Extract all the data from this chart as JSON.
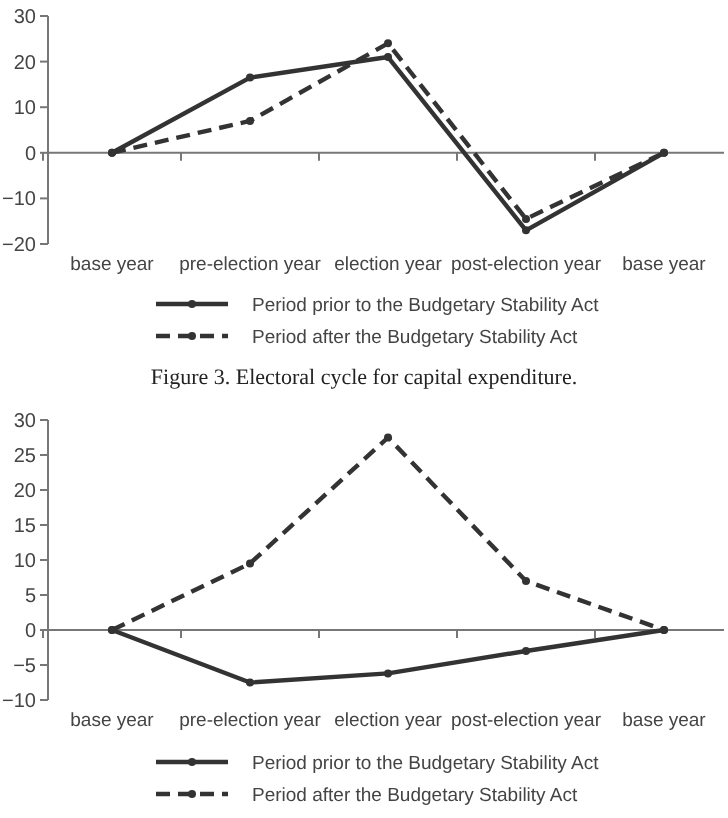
{
  "chart_data": [
    {
      "type": "line",
      "categories": [
        "base year",
        "pre-election year",
        "election year",
        "post-election year",
        "base year"
      ],
      "series": [
        {
          "name": "Period prior to the Budgetary Stability Act",
          "color": "#333333",
          "values": [
            0,
            16.5,
            21,
            -17,
            0
          ],
          "line_style": "solid"
        },
        {
          "name": "Period after the Budgetary Stability Act",
          "color": "#333333",
          "values": [
            0,
            7,
            24,
            -14.5,
            0
          ],
          "line_style": "dashed"
        }
      ],
      "ylim": [
        -20,
        30
      ],
      "yticks": [
        -20,
        -10,
        0,
        10,
        20,
        30
      ],
      "ref_lines": [
        {
          "axis": "y",
          "value": 0,
          "color": "#777777"
        }
      ],
      "legend": "bottom",
      "marker": "circle"
    },
    {
      "type": "line",
      "title": "Figure 3. Electoral cycle for capital expenditure.",
      "categories": [
        "base year",
        "pre-election year",
        "election year",
        "post-election year",
        "base year"
      ],
      "series": [
        {
          "name": "Period prior to the Budgetary Stability Act",
          "color": "#333333",
          "values": [
            0,
            -7.5,
            -6.2,
            -3,
            0
          ],
          "line_style": "solid"
        },
        {
          "name": "Period after the Budgetary Stability Act",
          "color": "#333333",
          "values": [
            0,
            9.5,
            27.5,
            7,
            0
          ],
          "line_style": "dashed"
        }
      ],
      "ylim": [
        -10,
        30
      ],
      "yticks": [
        -10,
        -5,
        0,
        5,
        10,
        15,
        20,
        25,
        30
      ],
      "ref_lines": [
        {
          "axis": "y",
          "value": 0,
          "color": "#777777"
        }
      ],
      "legend": "bottom",
      "marker": "circle"
    }
  ]
}
